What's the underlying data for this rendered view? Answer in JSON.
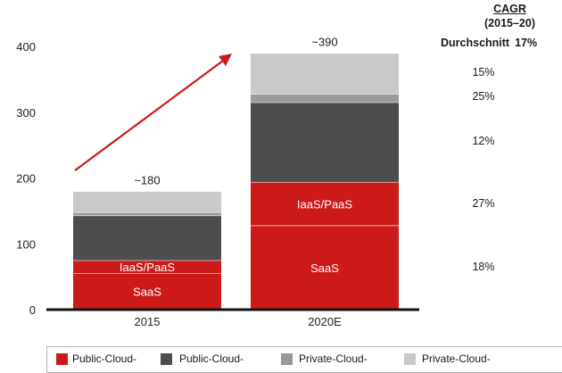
{
  "chart_data": {
    "type": "bar",
    "stacked": true,
    "categories": [
      "2015",
      "2020E"
    ],
    "series": [
      {
        "name": "SaaS",
        "values": [
          55,
          128
        ],
        "color": "#cc1a1a",
        "inner_label": "SaaS"
      },
      {
        "name": "IaaS/PaaS",
        "values": [
          20,
          66
        ],
        "color": "#cc1a1a",
        "inner_label": "IaaS/PaaS"
      },
      {
        "name": "",
        "values": [
          68,
          121
        ],
        "color": "#4d4d4d"
      },
      {
        "name": "",
        "values": [
          5,
          13
        ],
        "color": "#999999"
      },
      {
        "name": "",
        "values": [
          32,
          62
        ],
        "color": "#c9c9c9"
      }
    ],
    "totals": [
      "~180",
      "~390"
    ],
    "ylim": [
      0,
      400
    ],
    "yticks": [
      0,
      100,
      200,
      300,
      400
    ],
    "grid": false,
    "annotation": "growth arrow from 2015 to 2020E"
  },
  "cagr": {
    "title_line1": "CAGR",
    "title_line2": "(2015–20)",
    "avg_label": "Durchschnitt",
    "avg_value": "17%",
    "values": [
      "15%",
      "25%",
      "12%",
      "27%",
      "18%"
    ]
  },
  "legend": [
    {
      "label": "Public-Cloud-",
      "color": "#cc1a1a"
    },
    {
      "label": "Public-Cloud-",
      "color": "#4d4d4d"
    },
    {
      "label": "Private-Cloud-",
      "color": "#999999"
    },
    {
      "label": "Private-Cloud-",
      "color": "#c9c9c9"
    }
  ]
}
